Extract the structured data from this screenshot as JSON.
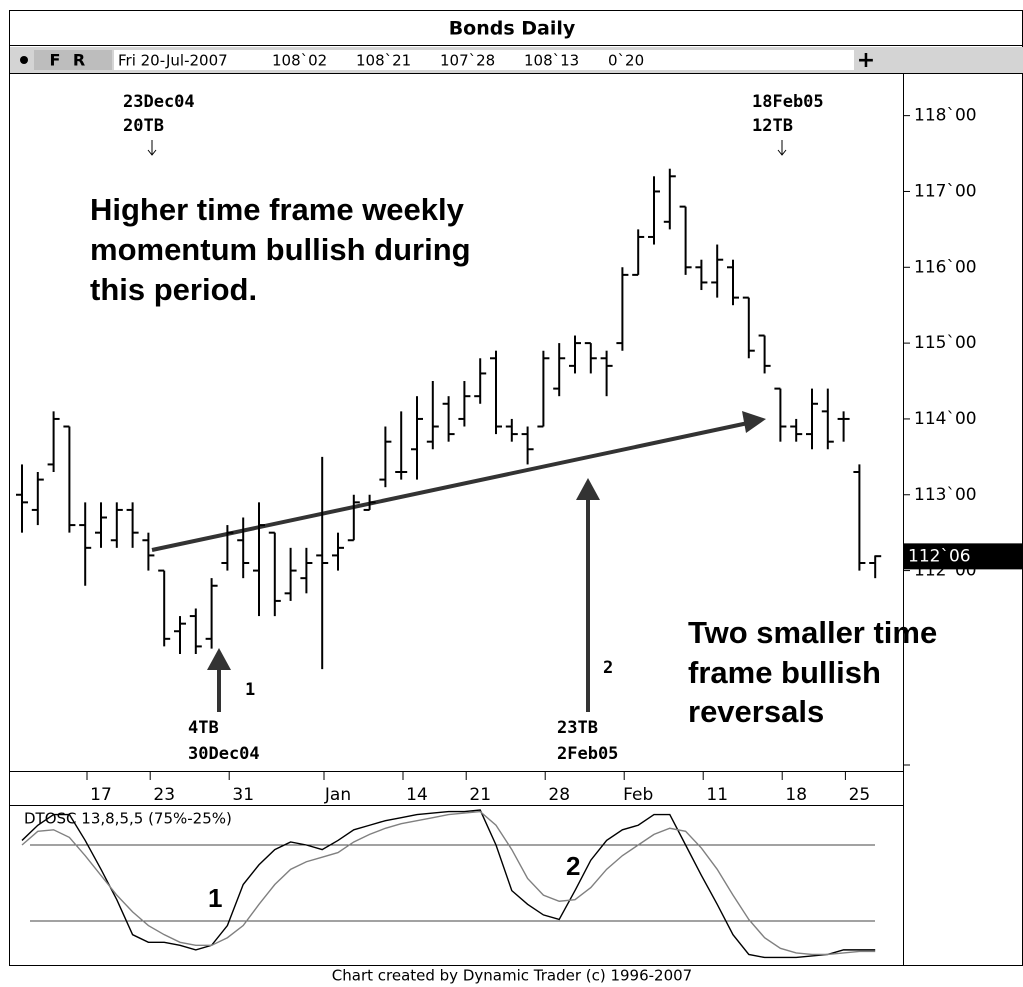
{
  "header": {
    "title": "Bonds Daily",
    "buttons": [
      "F",
      "R"
    ],
    "date": "Fri 20-Jul-2007",
    "quote": [
      "108`02",
      "108`21",
      "107`28",
      "108`13",
      "0`20"
    ]
  },
  "chart_data": [
    {
      "type": "ohlc",
      "categories": [
        null,
        null,
        null,
        null,
        null,
        "17",
        null,
        null,
        null,
        "23",
        null,
        null,
        null,
        null,
        "31",
        null,
        null,
        null,
        null,
        null,
        "Jan",
        null,
        null,
        null,
        null,
        "14",
        null,
        null,
        null,
        "21",
        null,
        null,
        null,
        null,
        "28",
        null,
        null,
        null,
        null,
        "Feb",
        null,
        null,
        null,
        null,
        "11",
        null,
        null,
        null,
        null,
        "18",
        null,
        null,
        null,
        "25",
        null
      ],
      "open": [
        113.0,
        112.8,
        113.4,
        113.9,
        112.6,
        112.5,
        112.4,
        112.8,
        112.4,
        112.0,
        111.2,
        111.4,
        111.1,
        112.1,
        112.4,
        112.0,
        112.5,
        111.7,
        111.9,
        112.2,
        112.2,
        112.4,
        112.8,
        113.2,
        113.3,
        113.6,
        113.7,
        114.2,
        114.0,
        114.3,
        114.8,
        113.9,
        113.8,
        113.9,
        114.4,
        114.7,
        115.0,
        114.8,
        115.0,
        115.9,
        116.4,
        116.6,
        116.8,
        116.0,
        115.8,
        116.0,
        115.6,
        115.1,
        114.4,
        113.9,
        113.8,
        114.1,
        114.0,
        113.3,
        112.1
      ],
      "high": [
        113.4,
        113.3,
        114.1,
        113.9,
        112.9,
        112.9,
        112.9,
        112.9,
        112.5,
        112.0,
        111.4,
        111.5,
        111.9,
        112.6,
        112.7,
        112.9,
        112.5,
        112.3,
        112.3,
        113.5,
        112.5,
        113.0,
        113.0,
        113.9,
        114.1,
        114.3,
        114.5,
        114.3,
        114.5,
        114.8,
        114.9,
        114.0,
        113.9,
        114.9,
        115.0,
        115.1,
        115.0,
        114.9,
        116.0,
        116.5,
        117.2,
        117.3,
        116.8,
        116.1,
        116.3,
        116.1,
        115.6,
        115.1,
        114.4,
        114.0,
        114.4,
        114.4,
        114.1,
        113.4,
        112.2
      ],
      "low": [
        112.5,
        112.6,
        113.3,
        112.5,
        111.8,
        112.3,
        112.3,
        112.3,
        112.0,
        111.0,
        110.9,
        110.9,
        110.97,
        112.0,
        111.9,
        111.4,
        111.4,
        111.6,
        111.7,
        110.7,
        112.0,
        112.4,
        112.8,
        113.1,
        113.2,
        113.2,
        113.6,
        113.7,
        113.9,
        114.2,
        113.8,
        113.7,
        113.4,
        113.9,
        114.3,
        114.6,
        114.6,
        114.3,
        114.9,
        115.9,
        116.3,
        116.5,
        115.9,
        115.7,
        115.6,
        115.5,
        114.8,
        114.6,
        113.7,
        113.7,
        113.6,
        113.6,
        113.7,
        112.0,
        111.9
      ],
      "close": [
        112.9,
        113.2,
        114.0,
        112.6,
        112.3,
        112.7,
        112.8,
        112.5,
        112.2,
        111.1,
        111.3,
        111.0,
        111.8,
        112.5,
        112.1,
        112.6,
        111.6,
        112.0,
        112.1,
        112.1,
        112.3,
        112.9,
        112.9,
        113.7,
        113.3,
        114.0,
        113.9,
        113.8,
        114.3,
        114.6,
        113.9,
        113.8,
        113.6,
        114.8,
        114.8,
        115.0,
        114.8,
        114.7,
        115.9,
        116.4,
        117.0,
        117.2,
        116.0,
        115.8,
        116.1,
        115.6,
        114.9,
        114.7,
        113.9,
        113.8,
        114.2,
        113.7,
        114.0,
        112.1,
        112.19
      ],
      "color": "#000000",
      "ylim": [
        109.37,
        118.47
      ],
      "yticks": [
        {
          "value": 112,
          "label": "112`00"
        },
        {
          "value": 113,
          "label": "113`00"
        },
        {
          "value": 114,
          "label": "114`00"
        },
        {
          "value": 115,
          "label": "115`00"
        },
        {
          "value": 116,
          "label": "116`00"
        },
        {
          "value": 117,
          "label": "117`00"
        },
        {
          "value": 118,
          "label": "118`00"
        }
      ],
      "last_price": {
        "value": 112.1875,
        "label": "112`06"
      },
      "annotations": [
        "23Dec04",
        "20TB",
        "18Feb05",
        "12TB",
        "Higher time frame weekly",
        "momentum bullish during",
        "this period.",
        "1",
        "4TB",
        "30Dec04",
        "2",
        "23TB",
        "2Feb05",
        "Two smaller time",
        "frame bullish",
        "reversals"
      ]
    },
    {
      "type": "line",
      "title": "DTOSC 13,8,5,5 (75%-25%)",
      "series": [
        {
          "color": "#000000",
          "values": [
            78,
            88,
            95,
            95,
            78,
            59,
            39,
            16,
            11,
            11,
            9,
            6,
            9,
            22,
            49,
            62,
            72,
            77,
            75,
            72,
            78,
            85,
            88,
            91,
            93,
            95,
            96,
            97,
            97,
            98,
            75,
            45,
            36,
            29,
            26,
            45,
            65,
            78,
            85,
            88,
            95,
            95,
            75,
            55,
            36,
            16,
            3,
            1,
            1,
            1,
            2,
            3,
            6,
            6,
            6
          ]
        },
        {
          "color": "#808080",
          "values": [
            75,
            84,
            85,
            80,
            68,
            55,
            42,
            31,
            22,
            16,
            11,
            9,
            9,
            14,
            22,
            36,
            49,
            59,
            64,
            67,
            70,
            77,
            82,
            86,
            89,
            91,
            93,
            95,
            96,
            97,
            88,
            72,
            53,
            42,
            38,
            39,
            47,
            59,
            68,
            75,
            82,
            86,
            84,
            73,
            59,
            42,
            26,
            14,
            7,
            4,
            3,
            3,
            4,
            5,
            5
          ]
        }
      ],
      "ylim": [
        0,
        100
      ],
      "levels": [
        75,
        25
      ],
      "annotations": [
        "1",
        "2"
      ]
    }
  ],
  "footer": "Chart created by Dynamic Trader  (c) 1996-2007"
}
